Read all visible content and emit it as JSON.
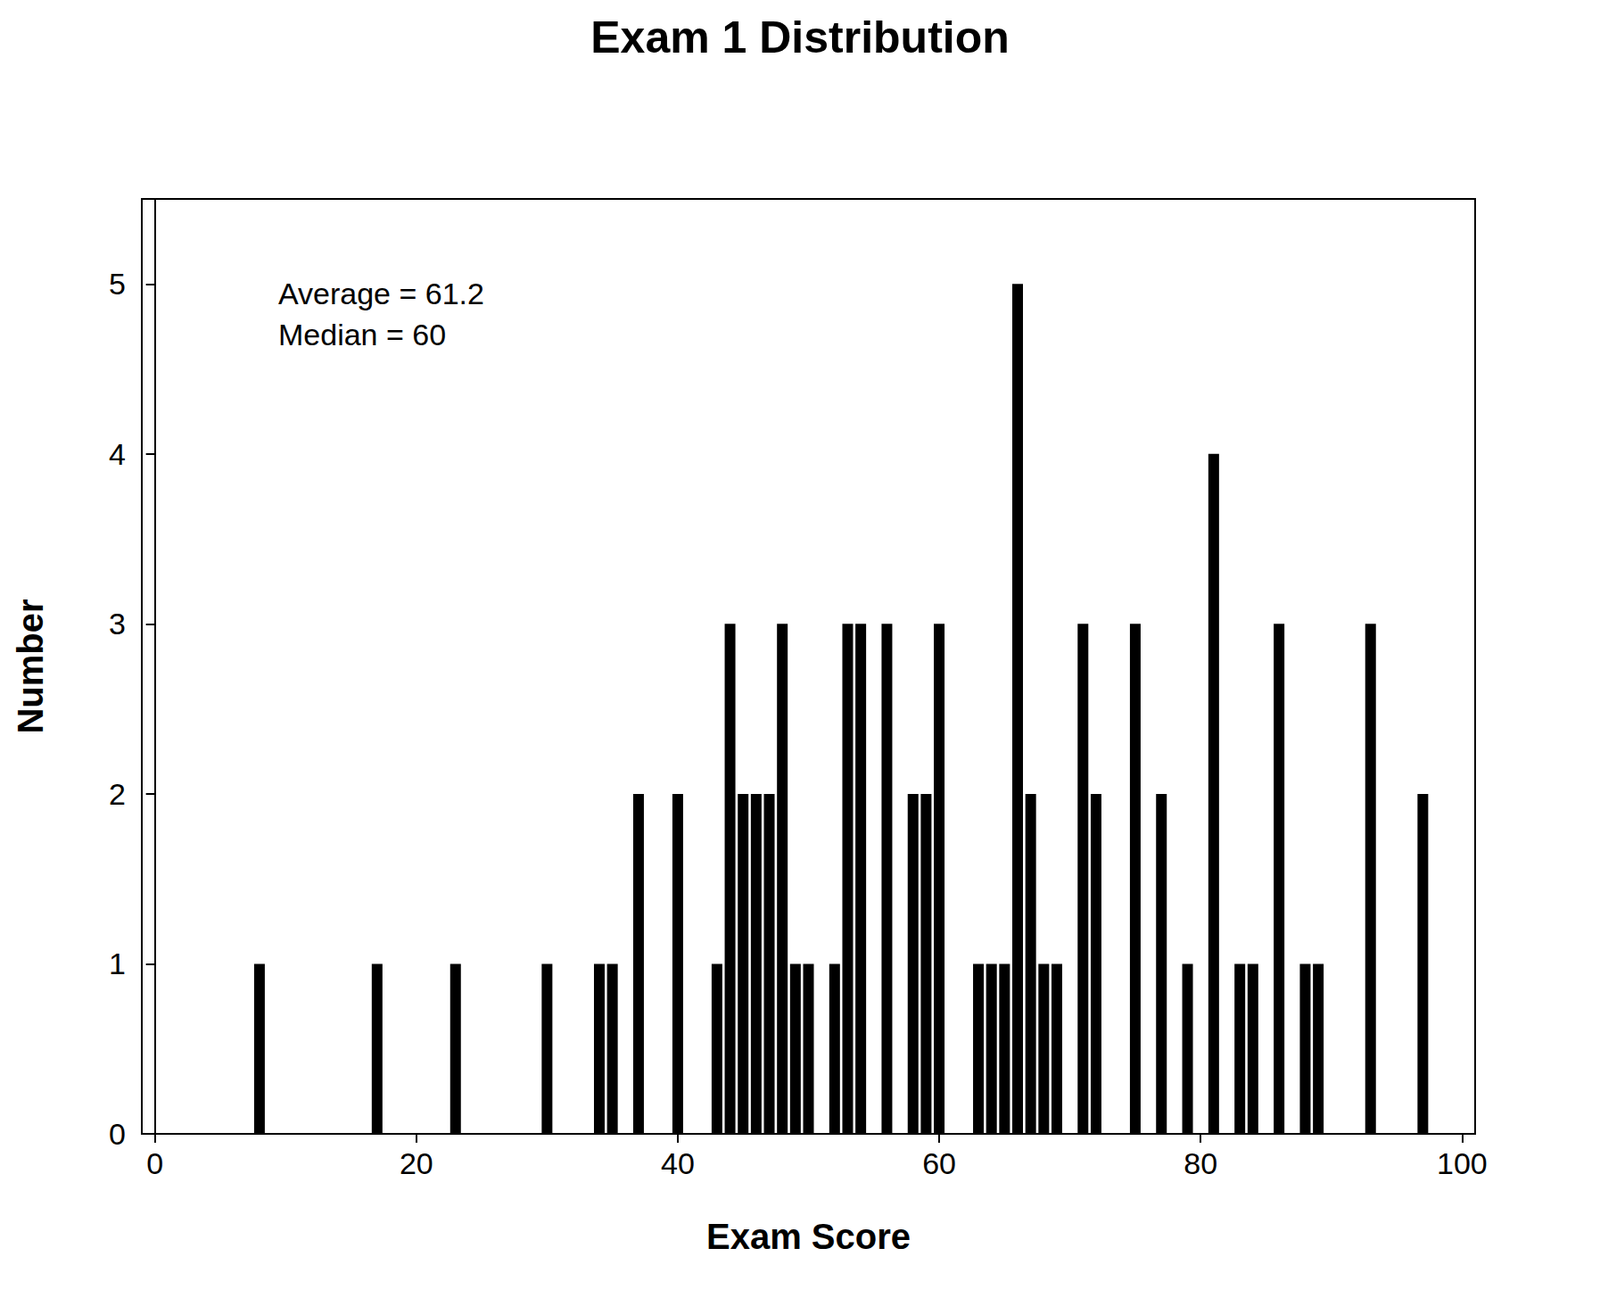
{
  "chart_data": {
    "type": "bar",
    "title": "Exam 1 Distribution",
    "x_label": "Exam Score",
    "y_label": "Number",
    "annotations": [
      "Average = 61.2",
      "Median = 60"
    ],
    "x": [
      8,
      17,
      23,
      30,
      34,
      35,
      37,
      40,
      43,
      44,
      45,
      46,
      47,
      48,
      49,
      50,
      52,
      53,
      54,
      56,
      58,
      59,
      60,
      63,
      64,
      65,
      66,
      67,
      68,
      69,
      71,
      72,
      75,
      77,
      79,
      81,
      83,
      84,
      86,
      88,
      89,
      93,
      97
    ],
    "values": [
      1,
      1,
      1,
      1,
      1,
      1,
      2,
      2,
      1,
      3,
      2,
      2,
      2,
      3,
      1,
      1,
      1,
      3,
      3,
      3,
      2,
      2,
      3,
      1,
      1,
      1,
      5,
      2,
      1,
      1,
      3,
      2,
      3,
      2,
      1,
      4,
      1,
      1,
      3,
      1,
      1,
      3,
      2
    ],
    "color": "#000000",
    "xlim": [
      -1,
      101
    ],
    "xticks": [
      0,
      20,
      40,
      60,
      80,
      100
    ],
    "ylim": [
      0,
      5.5
    ],
    "yticks": [
      0,
      1,
      2,
      3,
      4,
      5
    ],
    "grid": false
  }
}
